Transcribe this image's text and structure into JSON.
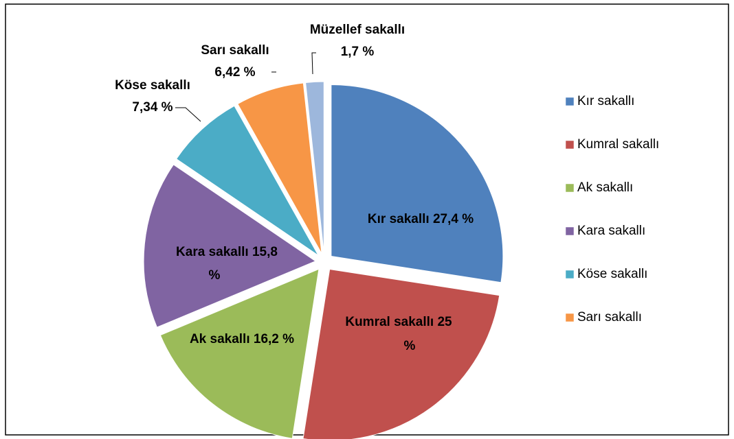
{
  "chart_data": {
    "type": "pie",
    "categories": [
      "Kır sakallı",
      "Kumral sakallı",
      "Ak sakallı",
      "Kara sakallı",
      "Köse sakallı",
      "Sarı sakallı",
      "Müzellef sakallı"
    ],
    "values": [
      27.4,
      25,
      16.2,
      15.8,
      7.34,
      6.42,
      1.7
    ],
    "value_labels": [
      "27,4 %",
      "25 %",
      "16,2 %",
      "15,8 %",
      "7,34 %",
      "6,42 %",
      "1,7 %"
    ],
    "colors": [
      "#4f81bd",
      "#c0504d",
      "#9bbb59",
      "#8064a2",
      "#4bacc6",
      "#f79646",
      "#9db7dc"
    ],
    "legend": "right"
  }
}
